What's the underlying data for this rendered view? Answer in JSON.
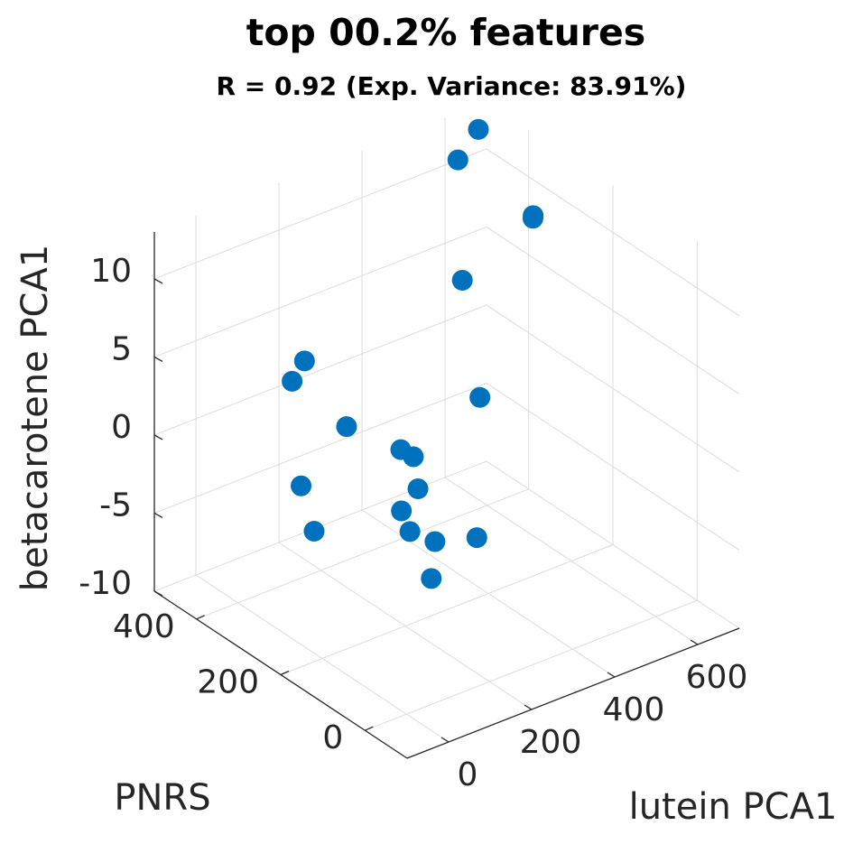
{
  "chart_data": {
    "type": "scatter3d",
    "title": "top 00.2% features",
    "subtitle": "R = 0.92 (Exp. Variance: 83.91%)",
    "xlabel": "lutein PCA1",
    "ylabel": "PNRS",
    "zlabel": "betacarotene PCA1",
    "xlim": [
      -100,
      700
    ],
    "ylim": [
      -100,
      500
    ],
    "zlim": [
      -10,
      13
    ],
    "x_ticks": [
      "0",
      "200",
      "400",
      "600"
    ],
    "y_ticks": [
      "0",
      "200",
      "400"
    ],
    "z_ticks": [
      "-10",
      "-5",
      "0",
      "5",
      "10"
    ],
    "grid": true,
    "marker_color": "#0072BD",
    "points": [
      {
        "x": 650,
        "y": 470,
        "z": 12.3
      },
      {
        "x": 560,
        "y": 430,
        "z": 12.0
      },
      {
        "x": 650,
        "y": 340,
        "z": 9.1
      },
      {
        "x": 690,
        "y": 380,
        "z": 7.8
      },
      {
        "x": 520,
        "y": 380,
        "z": 5.6
      },
      {
        "x": 400,
        "y": 220,
        "z": 2.2
      },
      {
        "x": 150,
        "y": 390,
        "z": 4.1
      },
      {
        "x": 110,
        "y": 380,
        "z": 3.4
      },
      {
        "x": 160,
        "y": 300,
        "z": 1.4
      },
      {
        "x": 250,
        "y": 260,
        "z": -0.3
      },
      {
        "x": 260,
        "y": 240,
        "z": -0.5
      },
      {
        "x": 190,
        "y": 160,
        "z": -0.4
      },
      {
        "x": 150,
        "y": 160,
        "z": -1.4
      },
      {
        "x": 130,
        "y": 120,
        "z": -1.8
      },
      {
        "x": 170,
        "y": 100,
        "z": -2.5
      },
      {
        "x": 210,
        "y": 40,
        "z": -1.6
      },
      {
        "x": 20,
        "y": 270,
        "z": -0.4
      },
      {
        "x": 80,
        "y": 20,
        "z": -2.5
      },
      {
        "x": -50,
        "y": 170,
        "z": -0.8
      }
    ]
  }
}
